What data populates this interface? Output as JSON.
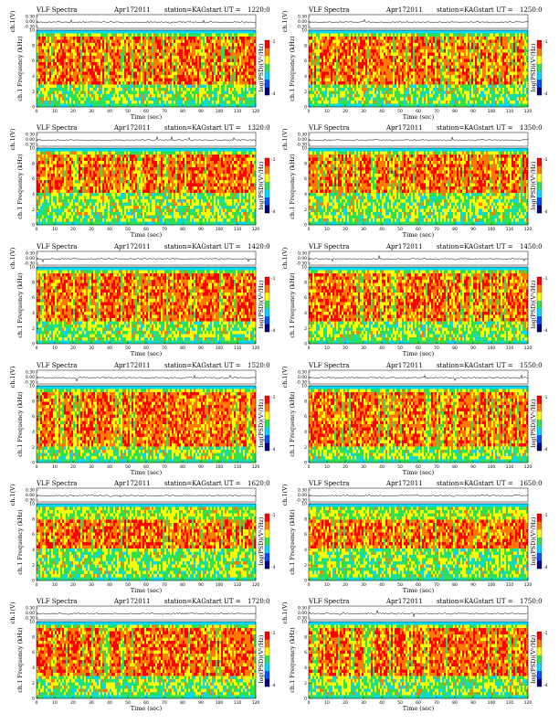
{
  "header": {
    "title": "VLF Spectra",
    "date": "Apr172011",
    "station": "station=KAG",
    "start_prefix": "start  UT  ="
  },
  "axes": {
    "top_ylabel": "ch.1(V)",
    "top_yticks": [
      "0.30",
      "0.00",
      "-0.30"
    ],
    "spec_ylabel": "ch.1 Frequency (kHz)",
    "spec_yticks": [
      "0",
      "2",
      "4",
      "6",
      "8",
      "10"
    ],
    "xlabel": "Time  (sec)",
    "xticks": [
      "0",
      "10",
      "20",
      "30",
      "40",
      "50",
      "60",
      "70",
      "80",
      "90",
      "100",
      "110",
      "120"
    ],
    "colorbar_label": "log(PSD)(V²/Hz)",
    "colorbar_ticks": [
      "-1",
      "-4"
    ]
  },
  "colors": {
    "spectrum_scale": [
      "#00007a",
      "#0050ff",
      "#00d8ff",
      "#30e050",
      "#ffff00",
      "#ff7a00",
      "#ff0000"
    ],
    "band_top": "#00e6e6",
    "noise_floor": "#00e6e6"
  },
  "chart_data": [
    {
      "type": "heatmap",
      "start_time": "1220:0",
      "x": [
        0,
        120
      ],
      "y": [
        0,
        10
      ],
      "waveform_ylim": [
        -0.3,
        0.3
      ],
      "intense_band_khz": [
        3,
        9
      ]
    },
    {
      "type": "heatmap",
      "start_time": "1250:0",
      "x": [
        0,
        120
      ],
      "y": [
        0,
        10
      ],
      "waveform_ylim": [
        -0.3,
        0.3
      ],
      "intense_band_khz": [
        3,
        9
      ]
    },
    {
      "type": "heatmap",
      "start_time": "1320:0",
      "x": [
        0,
        120
      ],
      "y": [
        0,
        10
      ],
      "waveform_ylim": [
        -0.3,
        0.3
      ],
      "intense_band_khz": [
        4,
        9
      ]
    },
    {
      "type": "heatmap",
      "start_time": "1350:0",
      "x": [
        0,
        120
      ],
      "y": [
        0,
        10
      ],
      "waveform_ylim": [
        -0.3,
        0.3
      ],
      "intense_band_khz": [
        4,
        9
      ]
    },
    {
      "type": "heatmap",
      "start_time": "1420:0",
      "x": [
        0,
        120
      ],
      "y": [
        0,
        10
      ],
      "waveform_ylim": [
        -0.3,
        0.3
      ],
      "intense_band_khz": [
        3,
        9
      ]
    },
    {
      "type": "heatmap",
      "start_time": "1450:0",
      "x": [
        0,
        120
      ],
      "y": [
        0,
        10
      ],
      "waveform_ylim": [
        -0.3,
        0.3
      ],
      "intense_band_khz": [
        3,
        9
      ]
    },
    {
      "type": "heatmap",
      "start_time": "1520:0",
      "x": [
        0,
        120
      ],
      "y": [
        0,
        10
      ],
      "waveform_ylim": [
        -0.3,
        0.3
      ],
      "intense_band_khz": [
        2,
        9
      ]
    },
    {
      "type": "heatmap",
      "start_time": "1550:0",
      "x": [
        0,
        120
      ],
      "y": [
        0,
        10
      ],
      "waveform_ylim": [
        -0.3,
        0.3
      ],
      "intense_band_khz": [
        2,
        9
      ]
    },
    {
      "type": "heatmap",
      "start_time": "1620:0",
      "x": [
        0,
        120
      ],
      "y": [
        0,
        10
      ],
      "waveform_ylim": [
        -0.3,
        0.3
      ],
      "intense_band_khz": [
        4,
        8
      ]
    },
    {
      "type": "heatmap",
      "start_time": "1650:0",
      "x": [
        0,
        120
      ],
      "y": [
        0,
        10
      ],
      "waveform_ylim": [
        -0.3,
        0.3
      ],
      "intense_band_khz": [
        4,
        8
      ]
    },
    {
      "type": "heatmap",
      "start_time": "1720:0",
      "x": [
        0,
        120
      ],
      "y": [
        0,
        10
      ],
      "waveform_ylim": [
        -0.3,
        0.3
      ],
      "intense_band_khz": [
        3,
        9
      ]
    },
    {
      "type": "heatmap",
      "start_time": "1750:0",
      "x": [
        0,
        120
      ],
      "y": [
        0,
        10
      ],
      "waveform_ylim": [
        -0.3,
        0.3
      ],
      "intense_band_khz": [
        3,
        9
      ]
    }
  ]
}
